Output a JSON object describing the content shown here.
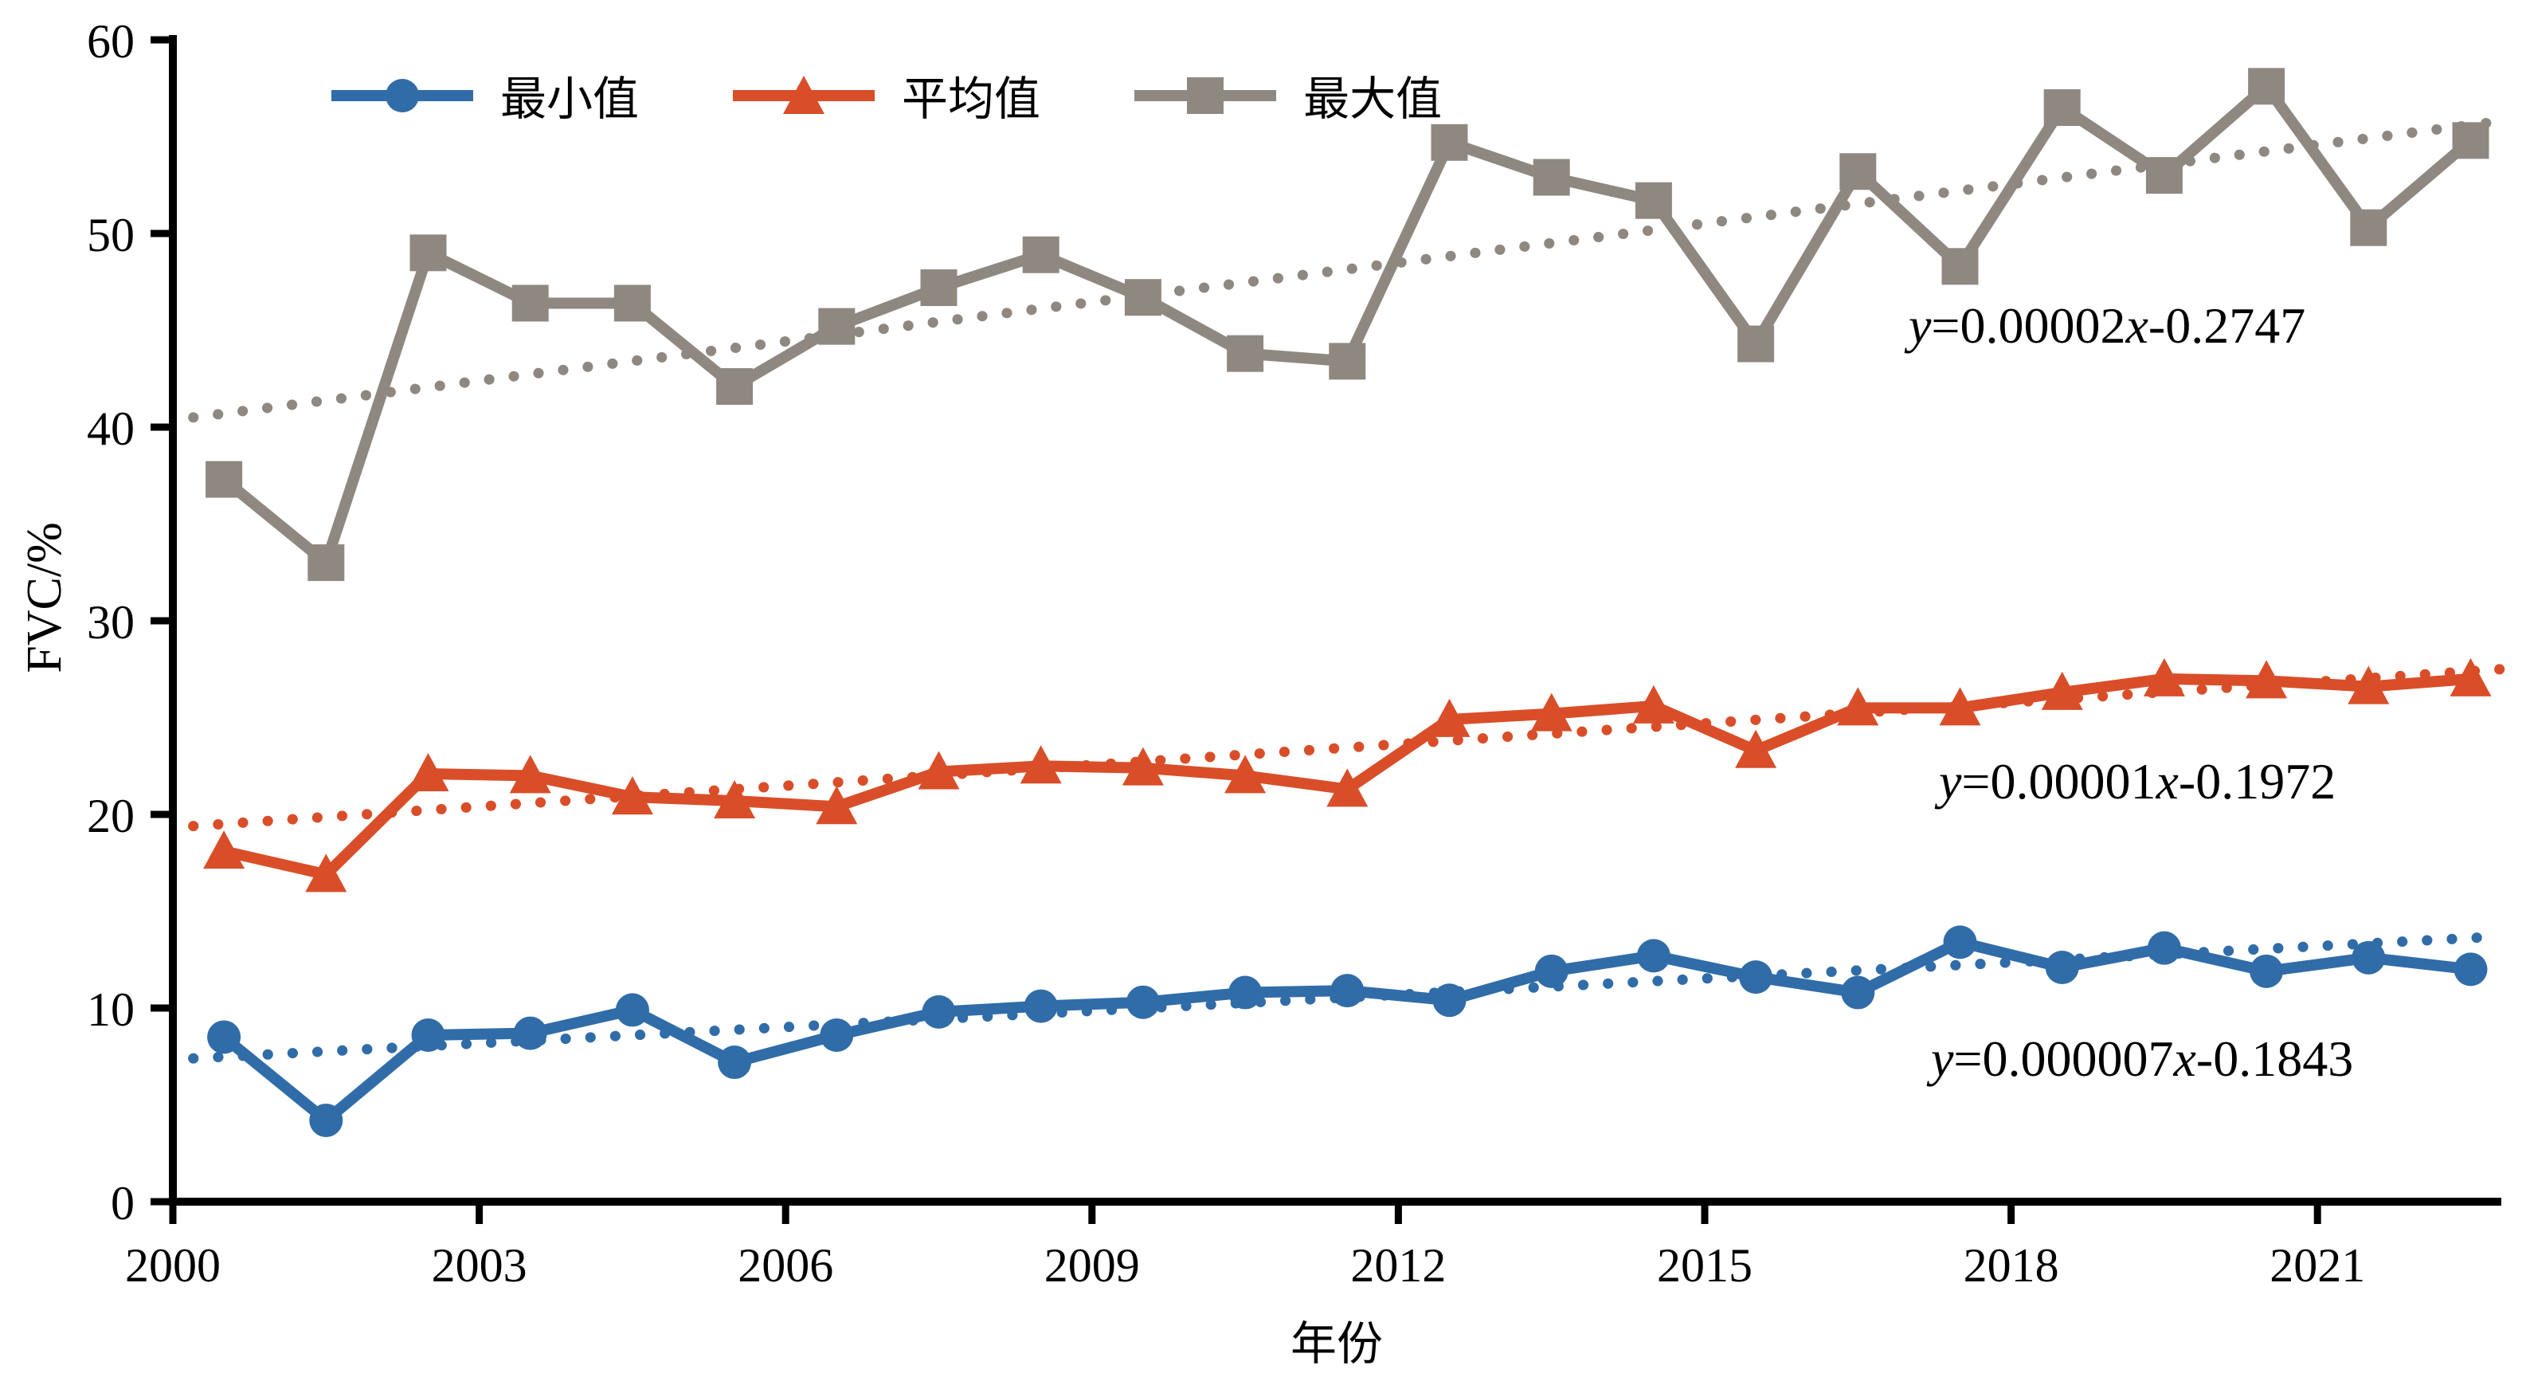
{
  "figure": {
    "y_axis": {
      "label": "FVC/%",
      "ticks": [
        0,
        10,
        20,
        30,
        40,
        50,
        60
      ]
    },
    "x_axis": {
      "label": "年份",
      "tick_years": [
        2000,
        2003,
        2006,
        2009,
        2012,
        2015,
        2018,
        2021
      ],
      "axis_end_year": 2022.8
    },
    "legend": [
      {
        "label": "最小值",
        "color": "#306CA8",
        "marker": "circle"
      },
      {
        "label": "平均值",
        "color": "#D94E28",
        "marker": "triangle"
      },
      {
        "label": "最大值",
        "color": "#8F8881",
        "marker": "square"
      }
    ]
  },
  "chart_data": {
    "type": "line",
    "title": "",
    "xlabel": "年份",
    "ylabel": "FVC/%",
    "ylim": [
      0,
      60
    ],
    "grid": false,
    "legend_position": "top-left-inside",
    "x": [
      2000,
      2001,
      2002,
      2003,
      2004,
      2005,
      2006,
      2007,
      2008,
      2009,
      2010,
      2011,
      2012,
      2013,
      2014,
      2015,
      2016,
      2017,
      2018,
      2019,
      2020,
      2021,
      2022
    ],
    "x_offset": 0.5,
    "series": [
      {
        "id": "min",
        "name": "最小值",
        "marker": "circle",
        "color": "#306CA8",
        "values": [
          8.5,
          4.2,
          8.6,
          8.7,
          9.9,
          7.2,
          8.6,
          9.8,
          10.1,
          10.3,
          10.8,
          10.9,
          10.4,
          11.9,
          12.7,
          11.6,
          10.8,
          13.4,
          12.1,
          13.1,
          11.9,
          12.6,
          12.0
        ]
      },
      {
        "id": "mean",
        "name": "平均值",
        "marker": "triangle",
        "color": "#D94E28",
        "values": [
          18.1,
          16.9,
          22.1,
          22.0,
          20.9,
          20.7,
          20.4,
          22.2,
          22.5,
          22.4,
          22.0,
          21.3,
          24.9,
          25.2,
          25.6,
          23.3,
          25.5,
          25.5,
          26.3,
          27.0,
          26.9,
          26.6,
          27.0
        ]
      },
      {
        "id": "max",
        "name": "最大值",
        "marker": "square",
        "color": "#8F8881",
        "values": [
          37.3,
          33.0,
          49.0,
          46.4,
          46.4,
          42.1,
          45.2,
          47.2,
          48.9,
          46.7,
          43.8,
          43.4,
          54.7,
          52.9,
          51.7,
          44.3,
          53.2,
          48.3,
          56.5,
          53.0,
          57.6,
          50.3,
          54.8
        ]
      }
    ],
    "trendlines": [
      {
        "id": "max",
        "equation": "y=0.00002x-0.2747",
        "color": "#8F8881",
        "style": "dotted",
        "from": {
          "x": 2000.2,
          "y": 40.5
        },
        "to": {
          "x": 2022.8,
          "y": 55.8
        }
      },
      {
        "id": "mean",
        "equation": "y=0.00001x-0.1972",
        "color": "#D94E28",
        "style": "dotted",
        "from": {
          "x": 2000.2,
          "y": 19.4
        },
        "to": {
          "x": 2022.8,
          "y": 27.5
        }
      },
      {
        "id": "min",
        "equation": "y=0.000007x-0.1843",
        "color": "#306CA8",
        "style": "dotted",
        "from": {
          "x": 2000.2,
          "y": 7.4
        },
        "to": {
          "x": 2022.8,
          "y": 13.7
        }
      }
    ]
  }
}
